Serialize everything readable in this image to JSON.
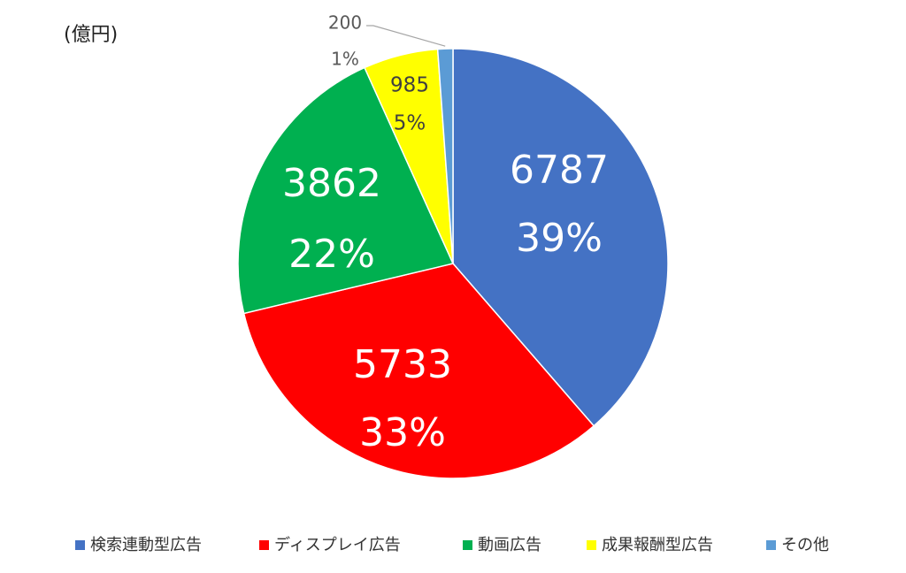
{
  "chart_data": {
    "type": "pie",
    "unit": "(億円)",
    "categories": [
      "検索連動型広告",
      "ディスプレイ広告",
      "動画広告",
      "成果報酬型広告",
      "その他"
    ],
    "values": [
      6787,
      5733,
      3862,
      985,
      200
    ],
    "percent_labels": [
      "39%",
      "33%",
      "22%",
      "5%",
      "1%"
    ],
    "colors": [
      "#4472c4",
      "#ff0000",
      "#00b050",
      "#ffff00",
      "#5b9bd5"
    ],
    "legend": "bottom"
  }
}
